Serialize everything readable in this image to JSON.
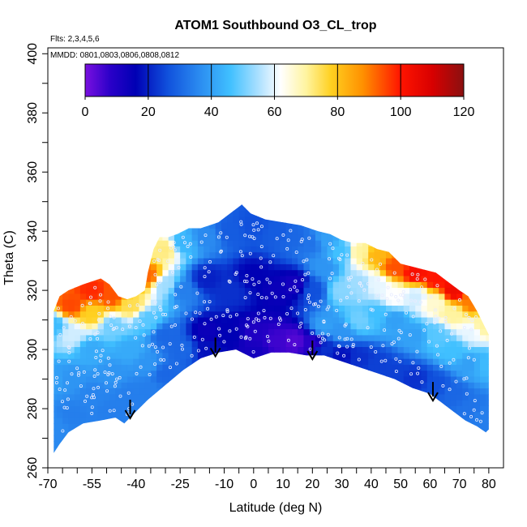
{
  "chart_data": {
    "type": "heatmap",
    "title": "ATOM1 Southbound O3_CL_trop",
    "subtitle_flights": "Flts: 2,3,4,5,6",
    "subtitle_dates": "MMDD: 0801,0803,0806,0808,0812",
    "xlabel": "Latitude (deg N)",
    "ylabel": "Theta (C)",
    "xlim": [
      -70,
      85
    ],
    "ylim": [
      260,
      402
    ],
    "x_tick_labels": [
      "-70",
      "-55",
      "-40",
      "-25",
      "-10",
      "0",
      "10",
      "20",
      "30",
      "40",
      "50",
      "60",
      "70",
      "80"
    ],
    "x_tick_values": [
      -70,
      -55,
      -40,
      -25,
      -10,
      0,
      10,
      20,
      30,
      40,
      50,
      60,
      70,
      80
    ],
    "y_tick_labels": [
      "260",
      "280",
      "300",
      "320",
      "340",
      "360",
      "380",
      "400"
    ],
    "y_tick_values": [
      260,
      280,
      300,
      320,
      340,
      360,
      380,
      400
    ],
    "colorbar": {
      "min": 0,
      "max": 120,
      "tick_labels": [
        "0",
        "20",
        "40",
        "60",
        "80",
        "100",
        "120"
      ],
      "tick_values": [
        0,
        20,
        40,
        60,
        80,
        100,
        120
      ],
      "stops": [
        {
          "value": 0,
          "color": "#7a10e0"
        },
        {
          "value": 8,
          "color": "#2a00c8"
        },
        {
          "value": 16,
          "color": "#0000b4"
        },
        {
          "value": 26,
          "color": "#1050dc"
        },
        {
          "value": 36,
          "color": "#2a8af0"
        },
        {
          "value": 46,
          "color": "#40c0ff"
        },
        {
          "value": 56,
          "color": "#b8e4ff"
        },
        {
          "value": 62,
          "color": "#ffffff"
        },
        {
          "value": 70,
          "color": "#fff4a0"
        },
        {
          "value": 78,
          "color": "#ffd020"
        },
        {
          "value": 88,
          "color": "#ff9000"
        },
        {
          "value": 100,
          "color": "#ff1400"
        },
        {
          "value": 110,
          "color": "#d80000"
        },
        {
          "value": 120,
          "color": "#8a1010"
        }
      ]
    },
    "upper_boundary": [
      [
        -68,
        313
      ],
      [
        -66,
        318
      ],
      [
        -63,
        320
      ],
      [
        -58,
        322
      ],
      [
        -52,
        324
      ],
      [
        -49,
        322
      ],
      [
        -46,
        318
      ],
      [
        -43,
        317
      ],
      [
        -40,
        318
      ],
      [
        -37,
        320
      ],
      [
        -36,
        326
      ],
      [
        -34,
        334
      ],
      [
        -32,
        338
      ],
      [
        -29,
        338
      ],
      [
        -26,
        339
      ],
      [
        -22,
        341
      ],
      [
        -18,
        341
      ],
      [
        -12,
        343
      ],
      [
        -8,
        346
      ],
      [
        -4,
        349
      ],
      [
        -1,
        346
      ],
      [
        4,
        344
      ],
      [
        10,
        343
      ],
      [
        16,
        342
      ],
      [
        22,
        340
      ],
      [
        26,
        339
      ],
      [
        30,
        337
      ],
      [
        34,
        336
      ],
      [
        38,
        336
      ],
      [
        42,
        334
      ],
      [
        46,
        333
      ],
      [
        50,
        329
      ],
      [
        54,
        328
      ],
      [
        58,
        327
      ],
      [
        62,
        326
      ],
      [
        66,
        323
      ],
      [
        70,
        320
      ],
      [
        73,
        318
      ],
      [
        76,
        313
      ],
      [
        79,
        307
      ],
      [
        80,
        305
      ]
    ],
    "lower_boundary": [
      [
        -68,
        265
      ],
      [
        -66,
        268
      ],
      [
        -63,
        272
      ],
      [
        -58,
        275
      ],
      [
        -52,
        276
      ],
      [
        -47,
        277
      ],
      [
        -44,
        275
      ],
      [
        -41,
        278
      ],
      [
        -36,
        283
      ],
      [
        -30,
        288
      ],
      [
        -24,
        293
      ],
      [
        -18,
        297
      ],
      [
        -12,
        299
      ],
      [
        -6,
        300
      ],
      [
        0,
        297
      ],
      [
        6,
        299
      ],
      [
        12,
        299
      ],
      [
        18,
        298
      ],
      [
        24,
        298
      ],
      [
        30,
        296
      ],
      [
        36,
        294
      ],
      [
        42,
        292
      ],
      [
        48,
        290
      ],
      [
        54,
        287
      ],
      [
        60,
        285
      ],
      [
        64,
        282
      ],
      [
        68,
        279
      ],
      [
        72,
        276
      ],
      [
        76,
        274
      ],
      [
        79,
        272
      ],
      [
        80,
        273
      ]
    ],
    "value_field": [
      [
        -68,
        308,
        45
      ],
      [
        -68,
        290,
        40
      ],
      [
        -68,
        275,
        36
      ],
      [
        -62,
        315,
        95
      ],
      [
        -62,
        305,
        58
      ],
      [
        -62,
        290,
        38
      ],
      [
        -62,
        278,
        34
      ],
      [
        -55,
        320,
        98
      ],
      [
        -55,
        312,
        78
      ],
      [
        -55,
        300,
        42
      ],
      [
        -55,
        285,
        35
      ],
      [
        -48,
        318,
        94
      ],
      [
        -48,
        308,
        50
      ],
      [
        -48,
        292,
        38
      ],
      [
        -48,
        280,
        34
      ],
      [
        -42,
        315,
        75
      ],
      [
        -42,
        300,
        42
      ],
      [
        -42,
        285,
        34
      ],
      [
        -36,
        325,
        92
      ],
      [
        -36,
        310,
        48
      ],
      [
        -36,
        295,
        38
      ],
      [
        -36,
        286,
        34
      ],
      [
        -30,
        334,
        72
      ],
      [
        -30,
        322,
        54
      ],
      [
        -30,
        305,
        30
      ],
      [
        -30,
        292,
        30
      ],
      [
        -24,
        336,
        44
      ],
      [
        -24,
        320,
        34
      ],
      [
        -24,
        300,
        30
      ],
      [
        -16,
        338,
        36
      ],
      [
        -16,
        324,
        20
      ],
      [
        -16,
        306,
        14
      ],
      [
        -16,
        300,
        18
      ],
      [
        -8,
        340,
        28
      ],
      [
        -8,
        320,
        22
      ],
      [
        -8,
        305,
        16
      ],
      [
        0,
        342,
        26
      ],
      [
        0,
        325,
        16
      ],
      [
        0,
        305,
        10
      ],
      [
        0,
        299,
        12
      ],
      [
        8,
        340,
        28
      ],
      [
        8,
        320,
        14
      ],
      [
        8,
        303,
        6
      ],
      [
        14,
        338,
        30
      ],
      [
        14,
        322,
        12
      ],
      [
        14,
        303,
        4
      ],
      [
        20,
        336,
        32
      ],
      [
        20,
        320,
        26
      ],
      [
        20,
        302,
        8
      ],
      [
        24,
        337,
        40
      ],
      [
        24,
        328,
        38
      ],
      [
        24,
        308,
        40
      ],
      [
        24,
        300,
        22
      ],
      [
        30,
        333,
        46
      ],
      [
        30,
        320,
        52
      ],
      [
        30,
        306,
        38
      ],
      [
        30,
        298,
        18
      ],
      [
        36,
        333,
        70
      ],
      [
        36,
        322,
        54
      ],
      [
        36,
        310,
        50
      ],
      [
        36,
        297,
        22
      ],
      [
        42,
        332,
        82
      ],
      [
        42,
        322,
        60
      ],
      [
        42,
        312,
        46
      ],
      [
        42,
        295,
        24
      ],
      [
        48,
        328,
        94
      ],
      [
        48,
        318,
        62
      ],
      [
        48,
        310,
        40
      ],
      [
        48,
        292,
        24
      ],
      [
        55,
        326,
        102
      ],
      [
        55,
        318,
        58
      ],
      [
        55,
        305,
        40
      ],
      [
        55,
        290,
        22
      ],
      [
        62,
        324,
        100
      ],
      [
        62,
        316,
        66
      ],
      [
        62,
        305,
        48
      ],
      [
        62,
        288,
        26
      ],
      [
        68,
        320,
        104
      ],
      [
        68,
        312,
        70
      ],
      [
        68,
        300,
        46
      ],
      [
        68,
        285,
        30
      ],
      [
        74,
        316,
        90
      ],
      [
        74,
        306,
        60
      ],
      [
        74,
        295,
        40
      ],
      [
        74,
        280,
        32
      ],
      [
        78,
        308,
        70
      ],
      [
        78,
        295,
        45
      ],
      [
        78,
        278,
        34
      ]
    ],
    "arrows": [
      {
        "latitude": -42,
        "theta": 277
      },
      {
        "latitude": -13,
        "theta": 298
      },
      {
        "latitude": 20,
        "theta": 297
      },
      {
        "latitude": 61,
        "theta": 283
      }
    ]
  }
}
